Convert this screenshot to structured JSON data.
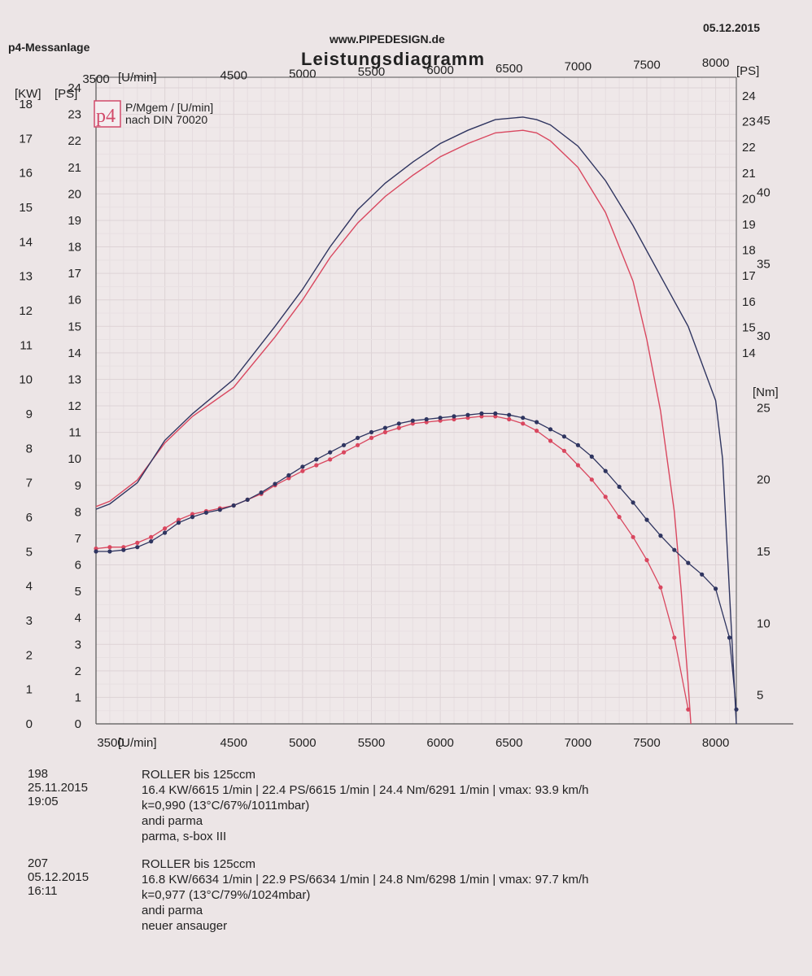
{
  "header": {
    "left": "p4-Messanlage",
    "site": "www.PIPEDESIGN.de",
    "date": "05.12.2015",
    "title": "Leistungsdiagramm"
  },
  "legend": {
    "line1": "P/Mgem / [U/min]",
    "line2": "nach DIN 70020",
    "logo": "p4"
  },
  "chart_data": {
    "type": "line",
    "title": "Leistungsdiagramm",
    "xlabel": "[U/min]",
    "ylabel_kw": "[KW]",
    "ylabel_ps": "[PS]",
    "ylabel_ps_right": "[PS]",
    "ylabel_nm": "[Nm]",
    "x_ticks_bottom": [
      "3500",
      "[U/min]",
      "4500",
      "5000",
      "5500",
      "6000",
      "6500",
      "7000",
      "7500",
      "8000"
    ],
    "x_ticks_top": [
      "3500",
      "[U/min]",
      "4500",
      "5000",
      "5500",
      "6000",
      "6500",
      "7000",
      "7500",
      "8000"
    ],
    "kw_ticks": [
      "0",
      "1",
      "2",
      "3",
      "4",
      "5",
      "6",
      "7",
      "8",
      "9",
      "10",
      "11",
      "12",
      "13",
      "14",
      "15",
      "16",
      "17",
      "18"
    ],
    "ps_ticks": [
      "0",
      "1",
      "2",
      "3",
      "4",
      "5",
      "6",
      "7",
      "8",
      "9",
      "10",
      "11",
      "12",
      "13",
      "14",
      "15",
      "16",
      "17",
      "18",
      "19",
      "20",
      "21",
      "22",
      "23",
      "24"
    ],
    "ps_right_ticks": [
      "14",
      "15",
      "16",
      "17",
      "18",
      "19",
      "20",
      "21",
      "22",
      "23",
      "24"
    ],
    "nm_ticks": [
      "5",
      "10",
      "15",
      "20",
      "25",
      "30",
      "35",
      "40",
      "45"
    ],
    "xlim": [
      3500,
      8150
    ],
    "ylim_ps": [
      0,
      24.4
    ],
    "ylim_nm": [
      3,
      48
    ],
    "series": [
      {
        "name": "198",
        "color": "#d9475f",
        "power_ps": {
          "x": [
            3500,
            3600,
            3800,
            4000,
            4200,
            4500,
            4800,
            5000,
            5200,
            5400,
            5600,
            5800,
            6000,
            6200,
            6400,
            6600,
            6700,
            6800,
            7000,
            7200,
            7400,
            7500,
            7600,
            7700,
            7750,
            7800,
            7820
          ],
          "y": [
            8.2,
            8.4,
            9.2,
            10.6,
            11.6,
            12.7,
            14.6,
            16.0,
            17.6,
            18.9,
            19.9,
            20.7,
            21.4,
            21.9,
            22.3,
            22.4,
            22.3,
            22.0,
            21.0,
            19.3,
            16.7,
            14.5,
            11.8,
            8.0,
            5.0,
            1.5,
            0
          ]
        },
        "torque_nm": {
          "x": [
            3500,
            3600,
            3700,
            3800,
            3900,
            4000,
            4100,
            4200,
            4300,
            4400,
            4500,
            4600,
            4700,
            4800,
            4900,
            5000,
            5100,
            5200,
            5300,
            5400,
            5500,
            5600,
            5700,
            5800,
            5900,
            6000,
            6100,
            6200,
            6300,
            6400,
            6500,
            6600,
            6700,
            6800,
            6900,
            7000,
            7100,
            7200,
            7300,
            7400,
            7500,
            7600,
            7700,
            7800
          ],
          "y": [
            15.2,
            15.3,
            15.3,
            15.6,
            16.0,
            16.6,
            17.2,
            17.6,
            17.8,
            18.0,
            18.2,
            18.6,
            19.0,
            19.6,
            20.1,
            20.6,
            21.0,
            21.4,
            21.9,
            22.4,
            22.9,
            23.3,
            23.6,
            23.9,
            24.0,
            24.1,
            24.2,
            24.3,
            24.4,
            24.4,
            24.2,
            23.9,
            23.4,
            22.7,
            22.0,
            21.0,
            20.0,
            18.8,
            17.4,
            16.0,
            14.4,
            12.5,
            9.0,
            4.0
          ]
        }
      },
      {
        "name": "207",
        "color": "#2f3560",
        "power_ps": {
          "x": [
            3500,
            3600,
            3800,
            4000,
            4200,
            4500,
            4800,
            5000,
            5200,
            5400,
            5600,
            5800,
            6000,
            6200,
            6400,
            6600,
            6700,
            6800,
            7000,
            7200,
            7400,
            7600,
            7800,
            8000,
            8050,
            8100,
            8150
          ],
          "y": [
            8.1,
            8.3,
            9.1,
            10.7,
            11.7,
            13.0,
            15.0,
            16.4,
            18.0,
            19.4,
            20.4,
            21.2,
            21.9,
            22.4,
            22.8,
            22.9,
            22.8,
            22.6,
            21.8,
            20.5,
            18.8,
            16.9,
            15.0,
            12.2,
            10.0,
            5.0,
            0
          ]
        },
        "torque_nm": {
          "x": [
            3500,
            3600,
            3700,
            3800,
            3900,
            4000,
            4100,
            4200,
            4300,
            4400,
            4500,
            4600,
            4700,
            4800,
            4900,
            5000,
            5100,
            5200,
            5300,
            5400,
            5500,
            5600,
            5700,
            5800,
            5900,
            6000,
            6100,
            6200,
            6300,
            6400,
            6500,
            6600,
            6700,
            6800,
            6900,
            7000,
            7100,
            7200,
            7300,
            7400,
            7500,
            7600,
            7700,
            7800,
            7900,
            8000,
            8100,
            8150
          ],
          "y": [
            15.0,
            15.0,
            15.1,
            15.3,
            15.7,
            16.3,
            17.0,
            17.4,
            17.7,
            17.9,
            18.2,
            18.6,
            19.1,
            19.7,
            20.3,
            20.9,
            21.4,
            21.9,
            22.4,
            22.9,
            23.3,
            23.6,
            23.9,
            24.1,
            24.2,
            24.3,
            24.4,
            24.5,
            24.6,
            24.6,
            24.5,
            24.3,
            24.0,
            23.5,
            23.0,
            22.4,
            21.6,
            20.6,
            19.5,
            18.4,
            17.2,
            16.1,
            15.1,
            14.2,
            13.4,
            12.4,
            9.0,
            4.0
          ]
        }
      }
    ]
  },
  "runs": [
    {
      "id": "198",
      "datetime": "25.11.2015  19:05",
      "line1": "ROLLER bis    125ccm",
      "line2": "16.4 KW/6615 1/min  |  22.4 PS/6615 1/min  |  24.4 Nm/6291 1/min | vmax: 93.9 km/h",
      "line3": "k=0,990 (13°C/67%/1011mbar)",
      "line4": "andi  parma",
      "line5": "parma, s-box III"
    },
    {
      "id": "207",
      "datetime": "05.12.2015  16:11",
      "line1": "ROLLER bis    125ccm",
      "line2": "16.8 KW/6634 1/min  |  22.9 PS/6634 1/min  |  24.8 Nm/6298 1/min | vmax: 97.7 km/h",
      "line3": "k=0,977 (13°C/79%/1024mbar)",
      "line4": "andi parma",
      "line5": "neuer ansauger"
    }
  ]
}
